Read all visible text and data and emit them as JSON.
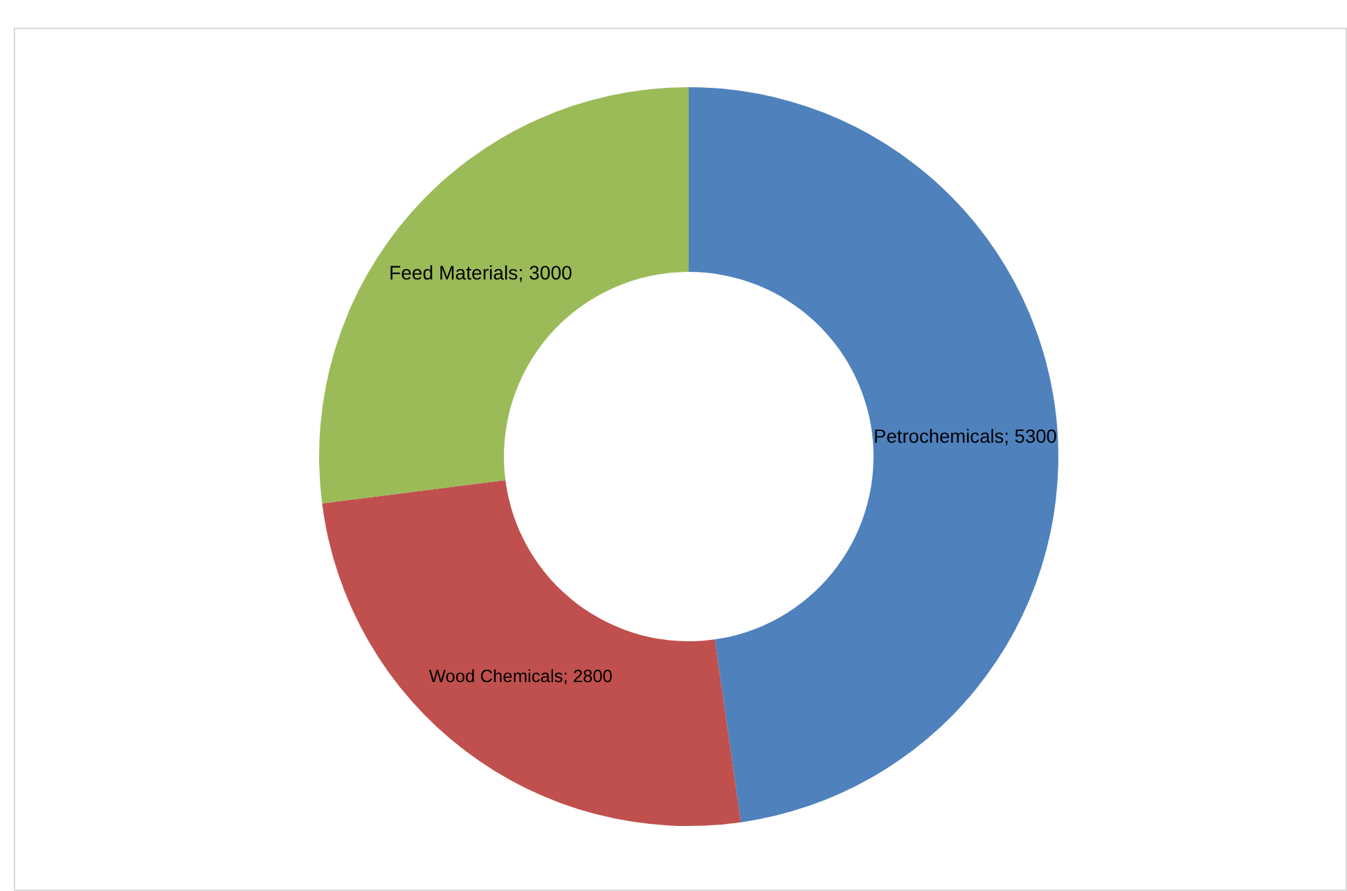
{
  "chart_data": {
    "type": "donut",
    "categories": [
      "Petrochemicals; 5300",
      "Wood Chemicals; 2800",
      "Feed Materials; 3000"
    ],
    "values": [
      5300,
      2800,
      3000
    ],
    "colors": [
      "#4f81bd",
      "#c0504d",
      "#9bbb59"
    ],
    "legend": false
  }
}
